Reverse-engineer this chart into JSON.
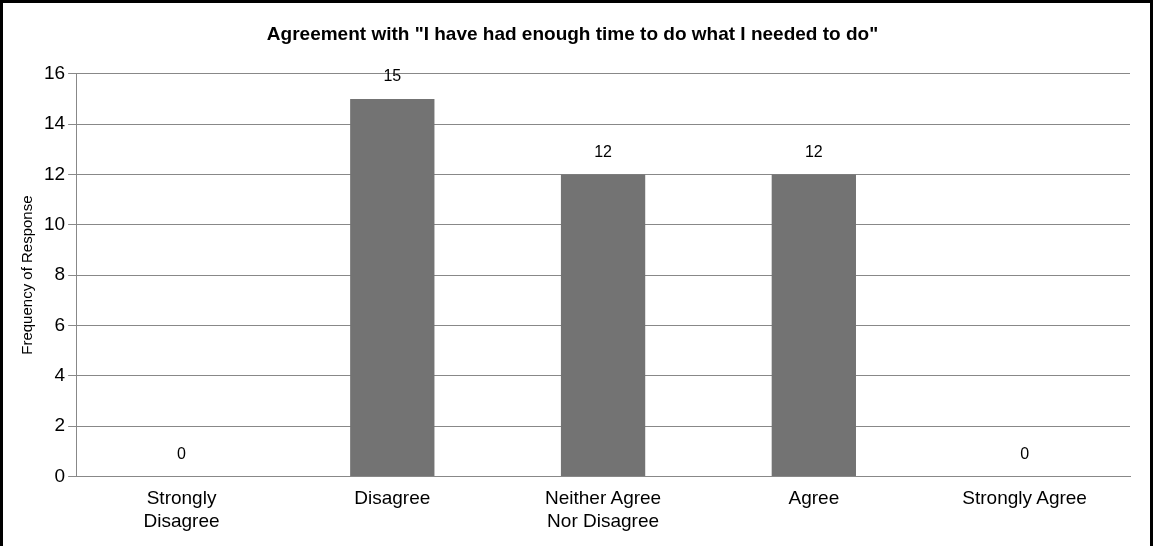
{
  "chart_data": {
    "type": "bar",
    "title": "Agreement with \"I have had enough time to do what I needed to do\"",
    "ylabel": "Frequency of Response",
    "categories": [
      "Strongly Disagree",
      "Disagree",
      "Neither Agree Nor Disagree",
      "Agree",
      "Strongly Agree"
    ],
    "values": [
      0,
      15,
      12,
      12,
      0
    ],
    "color": "#737373",
    "ylim": [
      0,
      16
    ],
    "yticks": [
      0,
      2,
      4,
      6,
      8,
      10,
      12,
      14,
      16
    ],
    "grid": "y",
    "data_labels": true,
    "legend": false
  }
}
